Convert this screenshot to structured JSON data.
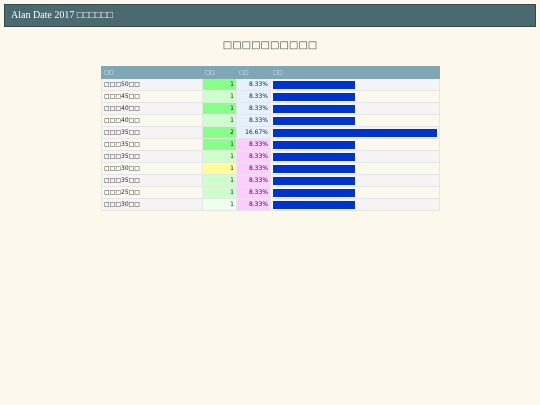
{
  "header": {
    "title": "Alan Date 2017 □□□□□□"
  },
  "page_title": "□□□□□□□□□□",
  "table": {
    "columns": [
      "□□",
      "□□",
      "□□",
      "□□"
    ],
    "bar_color": "#0033cc",
    "rows": [
      {
        "label": "□□□50□□",
        "count": 1,
        "percent": "8.33%",
        "count_color": "#88ff88",
        "percent_color": "#e4f2ff"
      },
      {
        "label": "□□□45□□",
        "count": 1,
        "percent": "8.33%",
        "count_color": "#ccffcc",
        "percent_color": "#e4f2ff"
      },
      {
        "label": "□□□40□□",
        "count": 1,
        "percent": "8.33%",
        "count_color": "#88ff88",
        "percent_color": "#e4f2ff"
      },
      {
        "label": "□□□40□□",
        "count": 1,
        "percent": "8.33%",
        "count_color": "#ccffcc",
        "percent_color": "#e4f2ff"
      },
      {
        "label": "□□□35□□",
        "count": 2,
        "percent": "16.67%",
        "count_color": "#88ff88",
        "percent_color": "#e4f2ff"
      },
      {
        "label": "□□□35□□",
        "count": 1,
        "percent": "8.33%",
        "count_color": "#88ff88",
        "percent_color": "#ffccff"
      },
      {
        "label": "□□□35□□",
        "count": 1,
        "percent": "8.33%",
        "count_color": "#ccffcc",
        "percent_color": "#ffccff"
      },
      {
        "label": "□□□30□□",
        "count": 1,
        "percent": "8.33%",
        "count_color": "#ffff99",
        "percent_color": "#ffccff"
      },
      {
        "label": "□□□35□□",
        "count": 1,
        "percent": "8.33%",
        "count_color": "#ccffcc",
        "percent_color": "#ffccff"
      },
      {
        "label": "□□□25□□",
        "count": 1,
        "percent": "8.33%",
        "count_color": "#ccffcc",
        "percent_color": "#ffccff"
      },
      {
        "label": "□□□30□□",
        "count": 1,
        "percent": "8.33%",
        "count_color": "#eeffee",
        "percent_color": "#ffccff"
      }
    ]
  }
}
